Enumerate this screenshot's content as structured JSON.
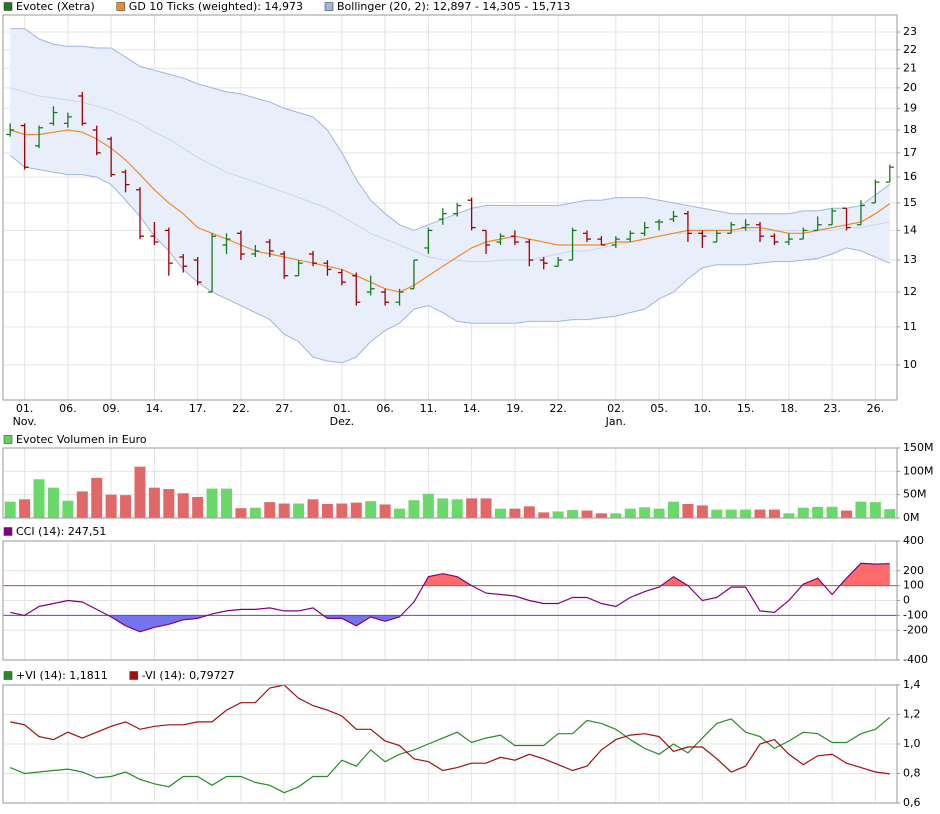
{
  "chart_data": [
    {
      "type": "ohlc",
      "log_scale": true,
      "grid": true,
      "ylim": [
        9.16,
        24
      ],
      "yticks": [
        10,
        11,
        12,
        13,
        14,
        15,
        16,
        17,
        18,
        19,
        20,
        21,
        22,
        23
      ],
      "categories": [
        null,
        "01.",
        null,
        null,
        "06.",
        null,
        null,
        "09.",
        null,
        null,
        "14.",
        null,
        null,
        "17.",
        null,
        null,
        "22.",
        null,
        null,
        "27.",
        null,
        null,
        null,
        "01.",
        null,
        null,
        "06.",
        null,
        null,
        "11.",
        null,
        null,
        "14.",
        null,
        null,
        "19.",
        null,
        null,
        "22.",
        null,
        null,
        null,
        "02.",
        null,
        null,
        "05.",
        null,
        null,
        "10.",
        null,
        null,
        "15.",
        null,
        null,
        "18.",
        null,
        null,
        "23.",
        null,
        null,
        "26.",
        null
      ],
      "x_sublabels": [
        null,
        "Nov.",
        null,
        null,
        null,
        null,
        null,
        null,
        null,
        null,
        null,
        null,
        null,
        null,
        null,
        null,
        null,
        null,
        null,
        null,
        null,
        null,
        null,
        "Dez.",
        null,
        null,
        null,
        null,
        null,
        null,
        null,
        null,
        null,
        null,
        null,
        null,
        null,
        null,
        null,
        null,
        null,
        null,
        "Jan.",
        null,
        null,
        null,
        null,
        null,
        null,
        null,
        null,
        null,
        null,
        null,
        null,
        null,
        null,
        null,
        null,
        null,
        null,
        null
      ],
      "series": [
        {
          "name": "Evotec (Xetra)",
          "up_color": "#1a7a1a",
          "down_color": "#a00000",
          "open": [
            17.8,
            18.2,
            17.3,
            18.3,
            18.3,
            19.6,
            18.0,
            17.6,
            16.2,
            15.5,
            13.8,
            14.0,
            13.1,
            13.0,
            12.0,
            13.5,
            13.9,
            13.2,
            13.6,
            13.2,
            12.5,
            13.2,
            12.9,
            12.6,
            12.5,
            12.0,
            12.0,
            11.7,
            12.1,
            13.4,
            14.4,
            14.6,
            15.1,
            14.0,
            13.6,
            13.8,
            13.6,
            13.0,
            12.8,
            13.0,
            13.9,
            13.7,
            13.5,
            13.7,
            13.9,
            14.3,
            14.4,
            14.6,
            13.9,
            13.6,
            13.9,
            14.1,
            14.2,
            13.8,
            13.6,
            13.7,
            14.0,
            14.2,
            14.8,
            14.2,
            15.0,
            15.8
          ],
          "high": [
            18.3,
            18.3,
            18.2,
            19.1,
            18.8,
            19.8,
            18.2,
            17.7,
            16.3,
            15.6,
            14.3,
            14.1,
            13.2,
            13.1,
            13.9,
            13.9,
            14.0,
            13.5,
            13.7,
            13.3,
            13.0,
            13.3,
            13.0,
            12.7,
            12.6,
            12.5,
            12.1,
            12.1,
            13.0,
            14.1,
            14.8,
            15.0,
            15.2,
            14.0,
            13.9,
            14.0,
            13.7,
            13.1,
            13.1,
            14.1,
            14.0,
            13.8,
            13.8,
            14.0,
            14.3,
            14.4,
            14.7,
            14.7,
            14.0,
            14.0,
            14.3,
            14.4,
            14.3,
            13.9,
            13.9,
            14.1,
            14.5,
            14.8,
            14.8,
            15.1,
            15.9,
            16.5
          ],
          "low": [
            17.7,
            16.3,
            17.2,
            18.2,
            18.1,
            18.2,
            16.9,
            16.0,
            15.4,
            13.7,
            13.5,
            12.5,
            12.6,
            12.2,
            12.0,
            13.2,
            13.0,
            13.1,
            13.1,
            12.4,
            12.5,
            12.8,
            12.5,
            12.2,
            11.6,
            11.9,
            11.6,
            11.6,
            12.1,
            13.2,
            14.2,
            14.5,
            14.0,
            13.2,
            13.5,
            13.5,
            12.8,
            12.7,
            12.8,
            13.0,
            13.6,
            13.5,
            13.4,
            13.6,
            13.8,
            14.0,
            14.3,
            13.6,
            13.4,
            13.6,
            13.9,
            14.0,
            13.6,
            13.5,
            13.5,
            13.7,
            14.0,
            14.2,
            14.0,
            14.2,
            15.0,
            15.8
          ],
          "close": [
            18.0,
            16.4,
            18.1,
            18.8,
            18.6,
            18.3,
            17.0,
            16.1,
            15.7,
            13.8,
            13.6,
            12.9,
            12.8,
            12.3,
            13.8,
            13.7,
            13.2,
            13.3,
            13.3,
            12.5,
            12.9,
            12.9,
            12.7,
            12.3,
            11.7,
            12.1,
            11.7,
            12.0,
            13.0,
            14.0,
            14.6,
            14.9,
            14.1,
            13.5,
            13.8,
            13.6,
            13.0,
            12.9,
            13.0,
            14.0,
            13.7,
            13.5,
            13.7,
            13.9,
            14.1,
            14.3,
            14.5,
            13.9,
            13.8,
            13.9,
            14.2,
            14.2,
            13.8,
            13.6,
            13.7,
            14.0,
            14.2,
            14.7,
            14.1,
            14.9,
            15.8,
            16.4
          ]
        },
        {
          "name": "GD 10 Ticks (weighted): 14,973",
          "type": "line",
          "color": "#f08a30",
          "values": [
            18.0,
            17.8,
            17.8,
            17.9,
            18.0,
            17.9,
            17.6,
            17.2,
            16.7,
            16.1,
            15.5,
            15.0,
            14.6,
            14.1,
            13.9,
            13.7,
            13.5,
            13.3,
            13.2,
            13.1,
            13.0,
            12.9,
            12.8,
            12.7,
            12.5,
            12.3,
            12.1,
            12.0,
            12.2,
            12.5,
            12.8,
            13.1,
            13.4,
            13.6,
            13.7,
            13.8,
            13.7,
            13.6,
            13.5,
            13.5,
            13.5,
            13.5,
            13.6,
            13.6,
            13.7,
            13.8,
            13.9,
            14.0,
            14.0,
            14.0,
            14.0,
            14.1,
            14.1,
            14.0,
            13.9,
            13.9,
            14.0,
            14.1,
            14.2,
            14.3,
            14.6,
            14.973
          ]
        },
        {
          "name": "Bollinger (20, 2): 12,897 - 14,305 - 15,713",
          "type": "band",
          "color": "#9fb6e0",
          "middle_color": "#c8d6f0",
          "fill": "#e8effb",
          "upper": [
            23.2,
            23.2,
            22.6,
            22.3,
            22.2,
            22.2,
            22.1,
            22.1,
            21.6,
            21.1,
            20.9,
            20.7,
            20.5,
            20.2,
            20.0,
            19.8,
            19.7,
            19.5,
            19.3,
            19.0,
            18.8,
            18.6,
            18.0,
            17.0,
            15.9,
            15.1,
            14.6,
            14.2,
            14.0,
            14.2,
            14.4,
            14.6,
            14.8,
            14.9,
            14.9,
            14.9,
            14.9,
            14.9,
            14.9,
            15.0,
            15.1,
            15.1,
            15.2,
            15.2,
            15.2,
            15.1,
            15.0,
            14.9,
            14.8,
            14.7,
            14.6,
            14.6,
            14.6,
            14.6,
            14.6,
            14.7,
            14.7,
            14.8,
            14.8,
            14.9,
            15.3,
            15.713
          ],
          "middle": [
            20.0,
            19.8,
            19.6,
            19.5,
            19.4,
            19.3,
            19.1,
            18.9,
            18.6,
            18.3,
            17.9,
            17.6,
            17.2,
            16.8,
            16.5,
            16.2,
            16.0,
            15.8,
            15.6,
            15.4,
            15.2,
            15.0,
            14.8,
            14.5,
            14.2,
            13.9,
            13.7,
            13.5,
            13.3,
            13.1,
            13.0,
            13.0,
            12.95,
            12.95,
            13.0,
            13.0,
            13.0,
            13.1,
            13.2,
            13.3,
            13.3,
            13.4,
            13.5,
            13.6,
            13.7,
            13.8,
            13.9,
            13.9,
            13.9,
            13.9,
            13.95,
            14.0,
            14.0,
            14.0,
            14.0,
            14.0,
            14.0,
            14.0,
            14.1,
            14.1,
            14.2,
            14.305
          ],
          "lower": [
            16.9,
            16.4,
            16.3,
            16.2,
            16.1,
            16.1,
            16.0,
            15.7,
            15.1,
            14.5,
            13.8,
            13.3,
            12.7,
            12.3,
            12.0,
            11.8,
            11.6,
            11.4,
            11.2,
            10.8,
            10.6,
            10.2,
            10.1,
            10.05,
            10.2,
            10.6,
            10.9,
            11.1,
            11.5,
            11.6,
            11.4,
            11.15,
            11.1,
            11.1,
            11.1,
            11.1,
            11.15,
            11.15,
            11.15,
            11.2,
            11.2,
            11.25,
            11.3,
            11.4,
            11.5,
            11.8,
            12.0,
            12.4,
            12.75,
            12.85,
            12.85,
            12.85,
            12.9,
            12.95,
            12.95,
            13.0,
            13.05,
            13.2,
            13.4,
            13.3,
            13.1,
            12.897
          ]
        }
      ]
    },
    {
      "type": "bar",
      "grid": true,
      "title": "Evotec Volumen in Euro",
      "legend_color": "#66cc66",
      "up_color": "#6ad86a",
      "down_color": "#e06868",
      "ylim": [
        0,
        150
      ],
      "yticks": [
        {
          "value": 0,
          "label": "0M"
        },
        {
          "value": 50,
          "label": "50M"
        },
        {
          "value": 100,
          "label": "100M"
        },
        {
          "value": 150,
          "label": "150M"
        }
      ],
      "values": [
        35,
        40,
        83,
        65,
        37,
        57,
        86,
        50,
        49,
        110,
        65,
        62,
        53,
        45,
        63,
        63,
        21,
        22,
        34,
        31,
        31,
        40,
        30,
        31,
        33,
        36,
        29,
        20,
        38,
        52,
        42,
        40,
        42,
        42,
        20,
        20,
        25,
        12,
        14,
        17,
        16,
        10,
        10,
        20,
        23,
        20,
        35,
        30,
        27,
        18,
        18,
        18,
        18,
        18,
        10,
        22,
        24,
        24,
        16,
        35,
        34,
        19
      ]
    },
    {
      "type": "cci",
      "grid": true,
      "ylim": [
        -400,
        400
      ],
      "yticks": [
        -400,
        -200,
        -100,
        0,
        100,
        200,
        400
      ],
      "thresholds": [
        {
          "value": 100,
          "color": "#e04040",
          "fill": "#ff6a6a"
        },
        {
          "value": -100,
          "color": "#5050d0",
          "fill": "#7474f0"
        }
      ],
      "series": [
        {
          "name": "CCI (14): 247,51",
          "color": "#800080",
          "values": [
            -80,
            -100,
            -40,
            -20,
            0,
            -10,
            -60,
            -110,
            -170,
            -210,
            -180,
            -160,
            -130,
            -120,
            -90,
            -70,
            -60,
            -60,
            -50,
            -70,
            -70,
            -50,
            -120,
            -120,
            -170,
            -110,
            -140,
            -110,
            -10,
            160,
            180,
            160,
            100,
            50,
            40,
            30,
            0,
            -20,
            -20,
            20,
            20,
            -20,
            -40,
            20,
            60,
            90,
            160,
            100,
            0,
            20,
            90,
            90,
            -70,
            -80,
            0,
            110,
            150,
            40,
            150,
            250,
            245,
            247.51
          ]
        }
      ]
    },
    {
      "type": "line",
      "grid": true,
      "ylim": [
        0.6,
        1.4
      ],
      "yticks": [
        {
          "value": 0.6,
          "label": "0,6"
        },
        {
          "value": 0.8,
          "label": "0,8"
        },
        {
          "value": 1.0,
          "label": "1,0"
        },
        {
          "value": 1.2,
          "label": "1,2"
        },
        {
          "value": 1.4,
          "label": "1,4"
        }
      ],
      "series": [
        {
          "name": "+VI (14): 1,1811",
          "color": "#2a8a2a",
          "values": [
            0.84,
            0.8,
            0.81,
            0.82,
            0.83,
            0.81,
            0.77,
            0.78,
            0.81,
            0.76,
            0.73,
            0.71,
            0.78,
            0.78,
            0.72,
            0.78,
            0.78,
            0.74,
            0.72,
            0.67,
            0.71,
            0.78,
            0.78,
            0.89,
            0.85,
            0.96,
            0.88,
            0.93,
            0.96,
            1.0,
            1.04,
            1.08,
            1.01,
            1.04,
            1.06,
            0.99,
            0.99,
            0.99,
            1.07,
            1.07,
            1.16,
            1.14,
            1.1,
            1.03,
            0.97,
            0.93,
            1.0,
            0.94,
            1.04,
            1.14,
            1.17,
            1.08,
            1.05,
            0.97,
            1.02,
            1.08,
            1.07,
            1.01,
            1.01,
            1.07,
            1.1,
            1.1811
          ]
        },
        {
          "name": "-VI (14): 0,79727",
          "color": "#a01010",
          "values": [
            1.15,
            1.13,
            1.05,
            1.03,
            1.08,
            1.04,
            1.08,
            1.12,
            1.15,
            1.1,
            1.12,
            1.13,
            1.13,
            1.15,
            1.15,
            1.23,
            1.28,
            1.28,
            1.38,
            1.4,
            1.31,
            1.26,
            1.23,
            1.19,
            1.1,
            1.1,
            1.02,
            0.99,
            0.9,
            0.88,
            0.82,
            0.84,
            0.87,
            0.87,
            0.91,
            0.89,
            0.93,
            0.9,
            0.86,
            0.82,
            0.85,
            0.96,
            1.03,
            1.06,
            1.07,
            1.05,
            0.95,
            0.98,
            0.98,
            0.9,
            0.81,
            0.85,
            1.0,
            1.03,
            0.93,
            0.86,
            0.92,
            0.93,
            0.87,
            0.84,
            0.81,
            0.79727
          ]
        }
      ]
    }
  ]
}
